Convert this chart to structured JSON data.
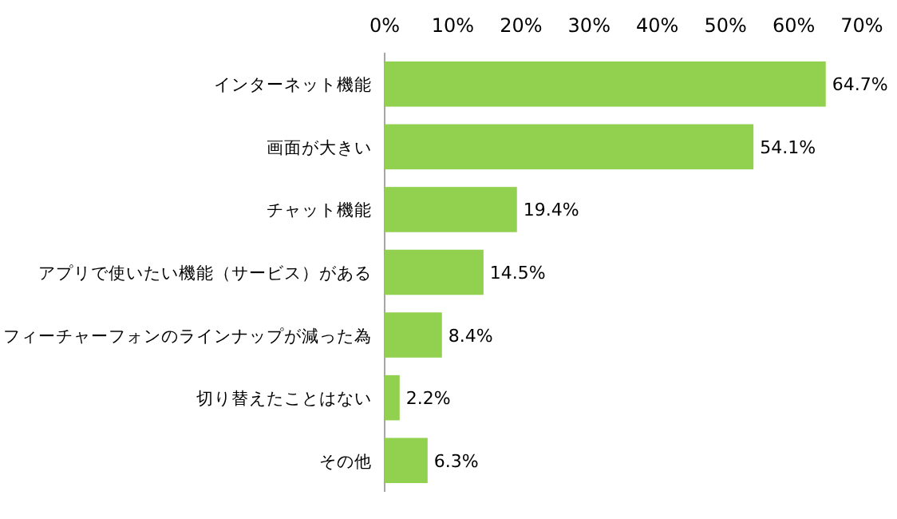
{
  "chart_data": {
    "type": "bar",
    "orientation": "horizontal",
    "categories": [
      "インターネット機能",
      "画面が大きい",
      "チャット機能",
      "アプリで使いたい機能（サービス）がある",
      "フィーチャーフォンのラインナップが減った為",
      "切り替えたことはない",
      "その他"
    ],
    "values": [
      64.7,
      54.1,
      19.4,
      14.5,
      8.4,
      2.2,
      6.3
    ],
    "value_labels": [
      "64.7%",
      "54.1%",
      "19.4%",
      "14.5%",
      "8.4%",
      "2.2%",
      "6.3%"
    ],
    "color": "#92d050",
    "xlim": [
      0,
      70
    ],
    "xticks": [
      {
        "value": 0,
        "label": "0%"
      },
      {
        "value": 10,
        "label": "10%"
      },
      {
        "value": 20,
        "label": "20%"
      },
      {
        "value": 30,
        "label": "30%"
      },
      {
        "value": 40,
        "label": "40%"
      },
      {
        "value": 50,
        "label": "50%"
      },
      {
        "value": 60,
        "label": "60%"
      },
      {
        "value": 70,
        "label": "70%"
      }
    ],
    "tick_labels": "x"
  }
}
